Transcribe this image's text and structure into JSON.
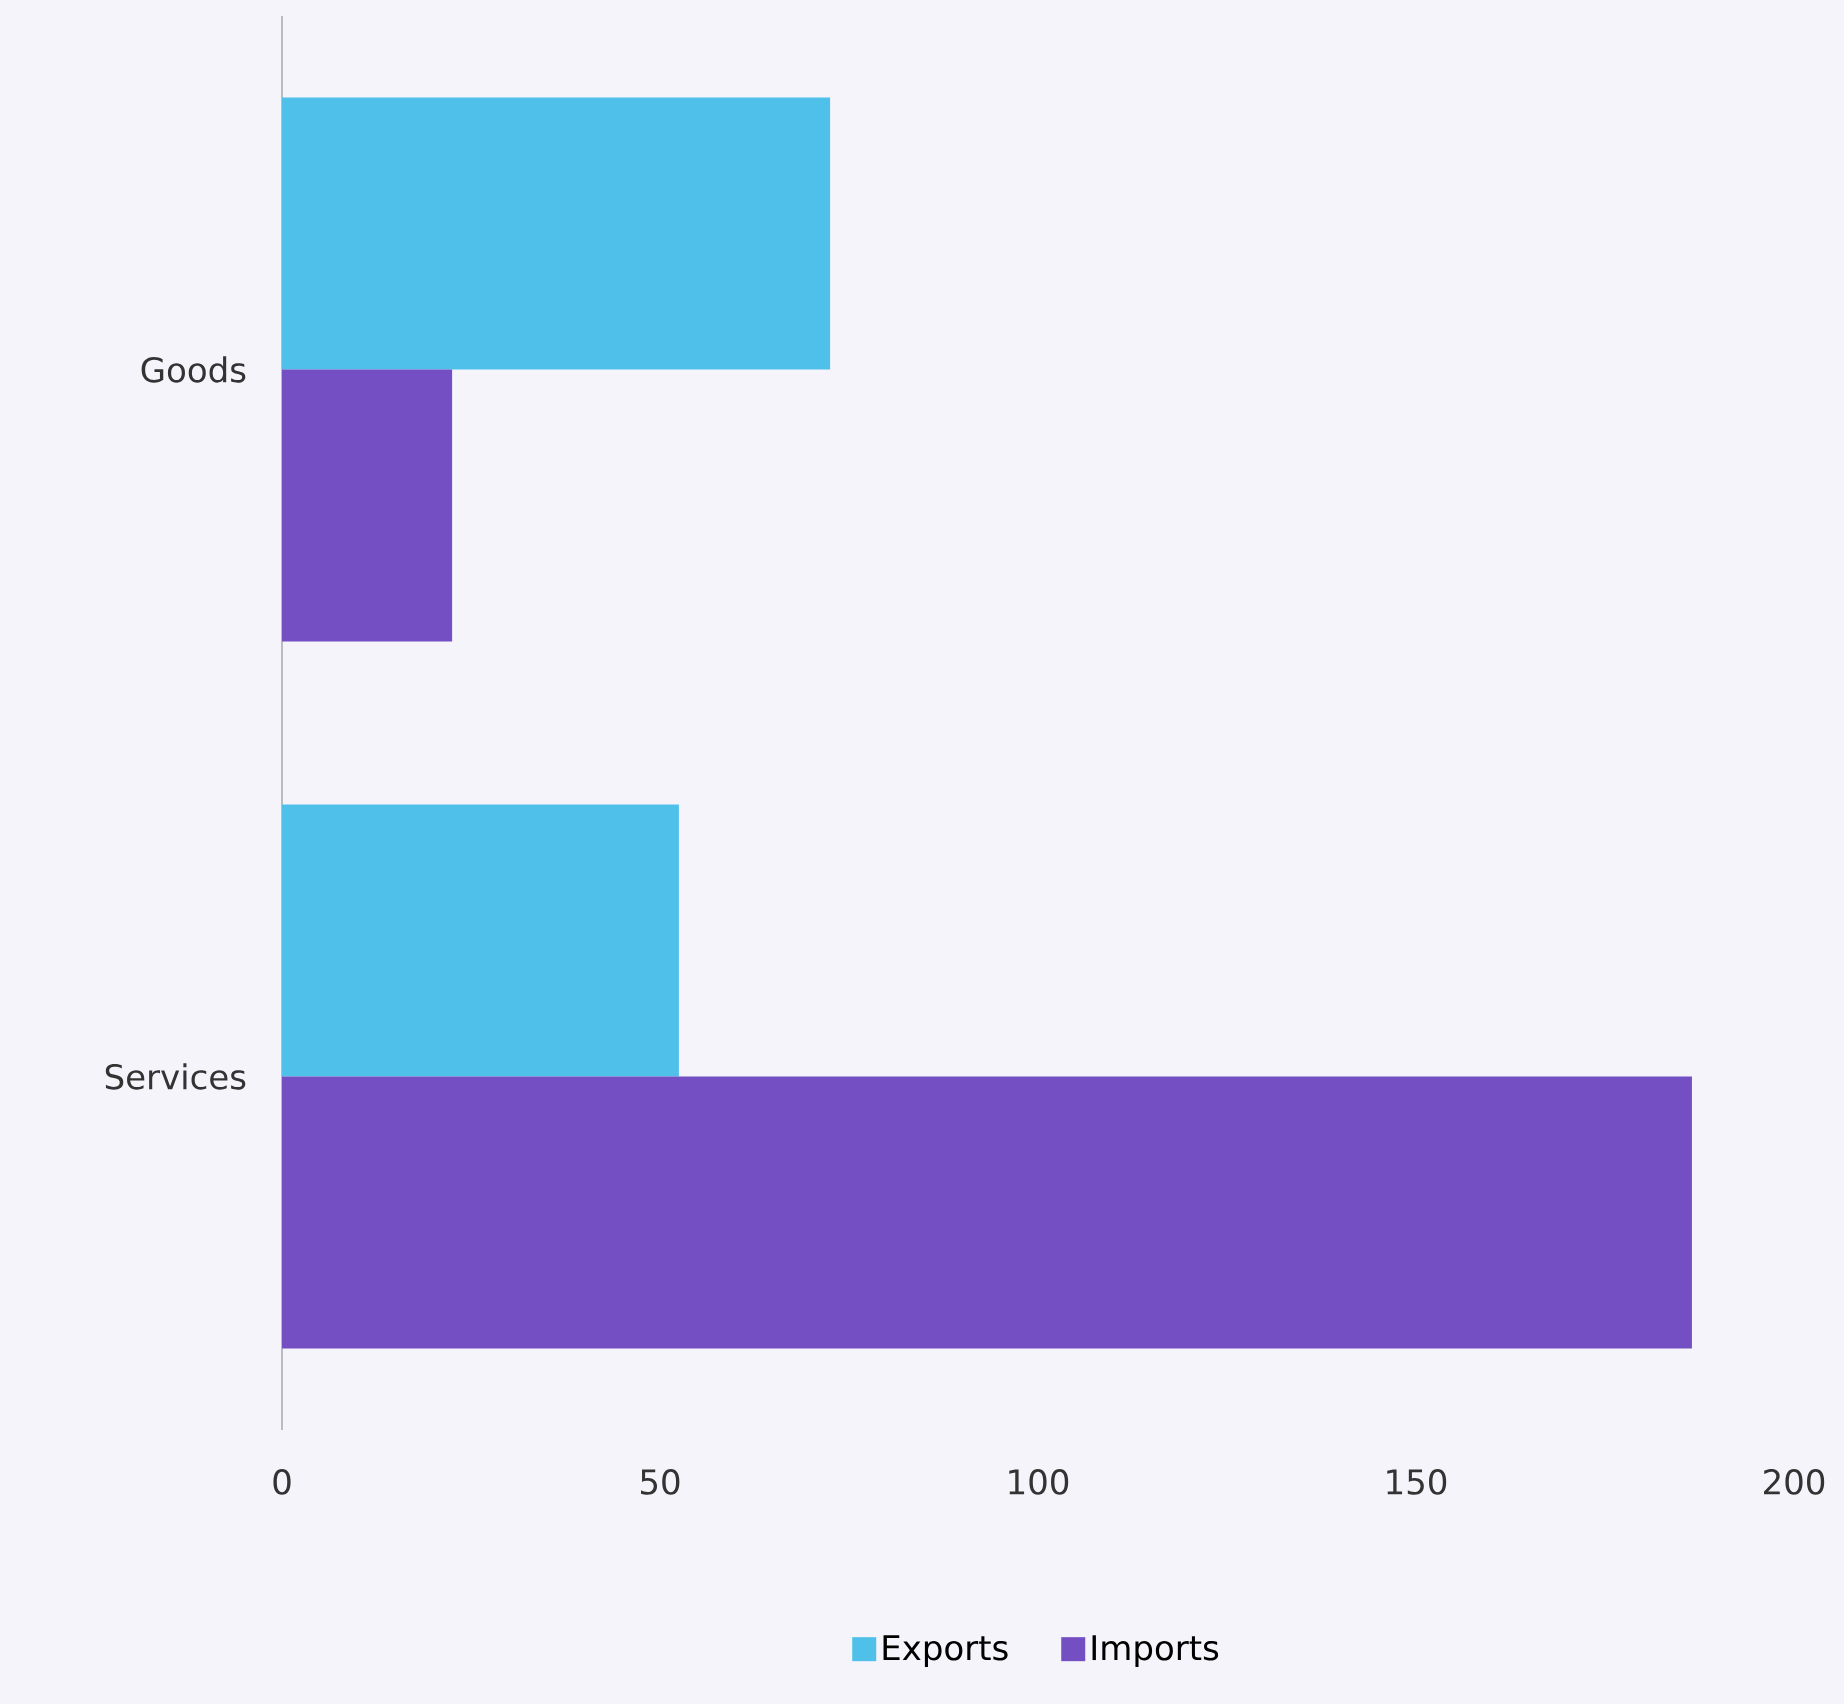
{
  "chart_data": {
    "type": "bar",
    "orientation": "horizontal",
    "categories": [
      "Goods",
      "Services"
    ],
    "series": [
      {
        "name": "Exports",
        "color": "#4fc0ea",
        "values": [
          72.5,
          52.5
        ]
      },
      {
        "name": "Imports",
        "color": "#734fc3",
        "values": [
          22.5,
          186.5
        ]
      }
    ],
    "xlim": [
      0,
      200
    ],
    "xticks": [
      0,
      50,
      100,
      150,
      200
    ],
    "grid": false,
    "legend": "bottom"
  }
}
